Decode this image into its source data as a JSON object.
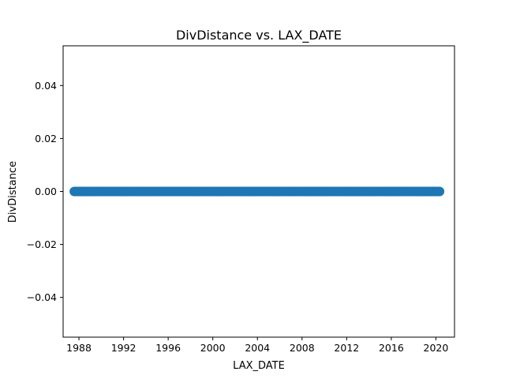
{
  "chart_data": {
    "type": "scatter",
    "title": "DivDistance vs. LAX_DATE",
    "xlabel": "LAX_DATE",
    "ylabel": "DivDistance",
    "x_ticks": [
      "1988",
      "1992",
      "1996",
      "2000",
      "2004",
      "2008",
      "2012",
      "2016",
      "2020"
    ],
    "y_ticks": [
      "0.04",
      "0.02",
      "0.00",
      "−0.02",
      "−0.04"
    ],
    "xlim": [
      "1986-08-01",
      "2021-09-01"
    ],
    "ylim": [
      -0.055,
      0.055
    ],
    "grid": false,
    "series": [
      {
        "x_range": [
          "1987-08-01",
          "2020-05-01"
        ],
        "y": 0.0,
        "color": "#1f77b4"
      }
    ]
  }
}
